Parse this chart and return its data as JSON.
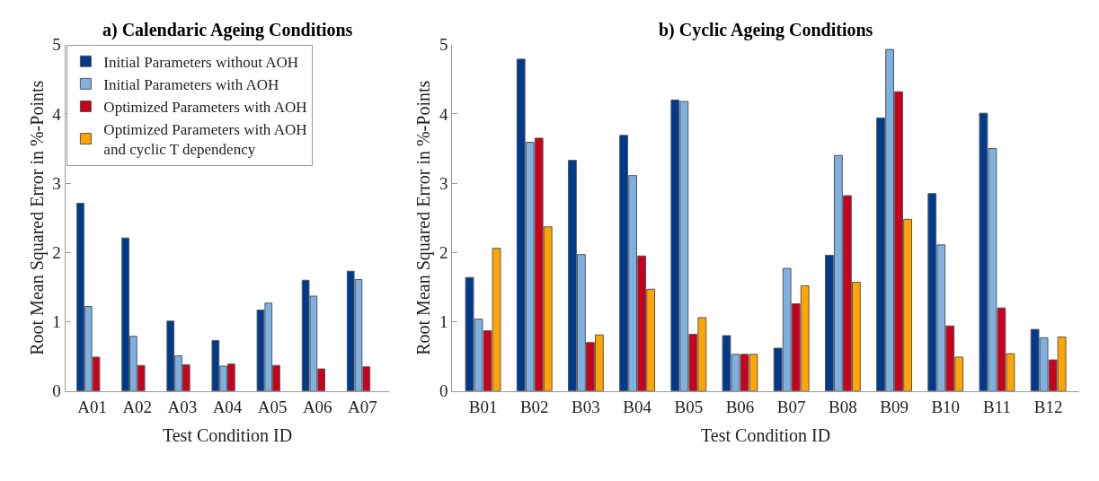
{
  "chart_data": [
    {
      "type": "bar",
      "title": "a) Calendaric Ageing Conditions",
      "xlabel": "Test Condition ID",
      "ylabel": "Root Mean Squared Error in %-Points",
      "categories": [
        "A01",
        "A02",
        "A03",
        "A04",
        "A05",
        "A06",
        "A07"
      ],
      "ylim": [
        0,
        5
      ],
      "yticks": [
        0,
        1,
        2,
        3,
        4,
        5
      ],
      "legend": "top left",
      "series": [
        {
          "name": "Initial Parameters without AOH",
          "color": "#003a8c",
          "values": [
            2.71,
            2.21,
            1.01,
            0.73,
            1.17,
            1.6,
            1.73
          ]
        },
        {
          "name": "Initial Parameters with AOH",
          "color": "#7eb0e0",
          "values": [
            1.22,
            0.79,
            0.51,
            0.36,
            1.27,
            1.37,
            1.61
          ]
        },
        {
          "name": "Optimized Parameters with AOH",
          "color": "#c8001e",
          "values": [
            0.49,
            0.37,
            0.38,
            0.39,
            0.37,
            0.32,
            0.35
          ]
        },
        {
          "name": "Optimized Parameters with AOH and cyclic T dependency",
          "color": "#ffa500",
          "values": [
            null,
            null,
            null,
            null,
            null,
            null,
            null
          ]
        }
      ]
    },
    {
      "type": "bar",
      "title": "b) Cyclic Ageing Conditions",
      "xlabel": "Test Condition ID",
      "ylabel": "Root Mean Squared Error in %-Points",
      "categories": [
        "B01",
        "B02",
        "B03",
        "B04",
        "B05",
        "B06",
        "B07",
        "B08",
        "B09",
        "B10",
        "B11",
        "B12"
      ],
      "ylim": [
        0,
        5
      ],
      "yticks": [
        0,
        1,
        2,
        3,
        4,
        5
      ],
      "series": [
        {
          "color": "#003a8c",
          "values": [
            1.64,
            4.79,
            3.33,
            3.69,
            4.2,
            0.8,
            0.62,
            1.96,
            3.94,
            2.85,
            4.01,
            0.89
          ]
        },
        {
          "color": "#7eb0e0",
          "values": [
            1.04,
            3.59,
            1.97,
            3.11,
            4.18,
            0.53,
            1.77,
            3.4,
            4.93,
            2.11,
            3.5,
            0.77
          ]
        },
        {
          "color": "#c8001e",
          "values": [
            0.87,
            3.65,
            0.7,
            1.95,
            0.82,
            0.53,
            1.26,
            2.82,
            4.32,
            0.94,
            1.2,
            0.45
          ]
        },
        {
          "color": "#ffa500",
          "values": [
            2.06,
            2.37,
            0.81,
            1.47,
            1.06,
            0.53,
            1.52,
            1.57,
            2.48,
            0.49,
            0.54,
            0.78
          ]
        }
      ]
    }
  ]
}
